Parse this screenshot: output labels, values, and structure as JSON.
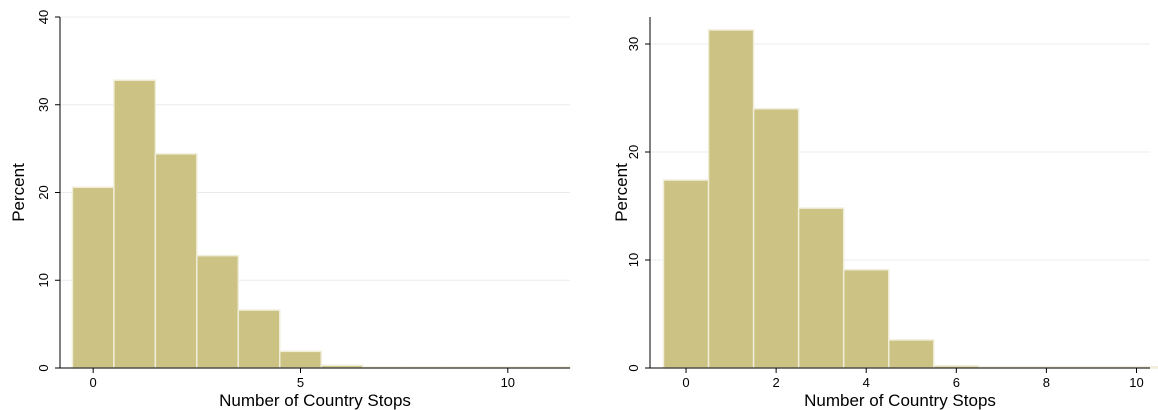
{
  "chart_data": [
    {
      "type": "bar",
      "xlabel": "Number of Country Stops",
      "ylabel": "Percent",
      "xlim": [
        -0.8,
        11.5
      ],
      "ylim": [
        0,
        40
      ],
      "bin_width": 1,
      "xticks": [
        0,
        5,
        10
      ],
      "yticks": [
        0,
        10,
        20,
        30,
        40
      ],
      "grid": true,
      "bins": [
        {
          "x": 0,
          "value": 20.6
        },
        {
          "x": 1,
          "value": 32.8
        },
        {
          "x": 2,
          "value": 24.4
        },
        {
          "x": 3,
          "value": 12.8
        },
        {
          "x": 4,
          "value": 6.6
        },
        {
          "x": 5,
          "value": 1.9
        },
        {
          "x": 6,
          "value": 0.3
        },
        {
          "x": 7,
          "value": 0.1
        },
        {
          "x": 8,
          "value": 0.1
        },
        {
          "x": 9,
          "value": 0.1
        },
        {
          "x": 10,
          "value": 0.1
        },
        {
          "x": 11,
          "value": 0.1
        }
      ]
    },
    {
      "type": "bar",
      "xlabel": "Number of Country Stops",
      "ylabel": "Percent",
      "xlim": [
        -0.8,
        10.3
      ],
      "ylim": [
        0,
        32.5
      ],
      "bin_width": 1,
      "xticks": [
        0,
        2,
        4,
        6,
        8,
        10
      ],
      "yticks": [
        0,
        10,
        20,
        30
      ],
      "grid": true,
      "bins": [
        {
          "x": 0,
          "value": 17.4
        },
        {
          "x": 1,
          "value": 31.3
        },
        {
          "x": 2,
          "value": 24.0
        },
        {
          "x": 3,
          "value": 14.8
        },
        {
          "x": 4,
          "value": 9.1
        },
        {
          "x": 5,
          "value": 2.6
        },
        {
          "x": 6,
          "value": 0.2
        },
        {
          "x": 7,
          "value": 0.1
        },
        {
          "x": 8,
          "value": 0.1
        },
        {
          "x": 9,
          "value": 0.1
        },
        {
          "x": 10,
          "value": 0.1
        }
      ]
    }
  ],
  "colors": {
    "bar_fill": "#cbc283",
    "bar_edge": "#f0edd9",
    "grid": "#e9ecef"
  }
}
